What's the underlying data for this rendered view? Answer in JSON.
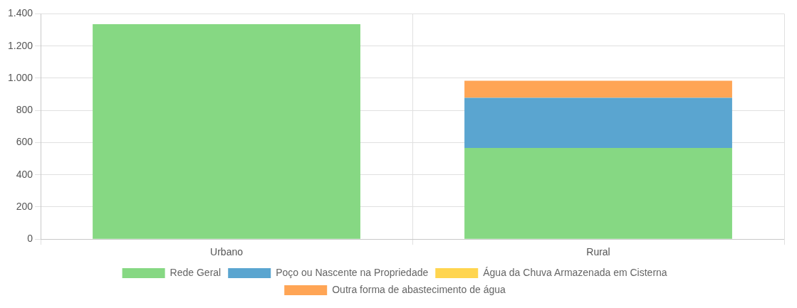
{
  "chart_data": {
    "type": "bar",
    "categories": [
      "Urbano",
      "Rural"
    ],
    "stacked": true,
    "series": [
      {
        "name": "Rede Geral",
        "color": "#86d883",
        "values": [
          1336,
          567
        ]
      },
      {
        "name": "Poço ou Nascente na Propriedade",
        "color": "#5aa5d0",
        "values": [
          0,
          311
        ]
      },
      {
        "name": "Água da Chuva Armazenada em Cisterna",
        "color": "#ffd54f",
        "values": [
          0,
          0
        ]
      },
      {
        "name": "Outra forma de abastecimento de água",
        "color": "#ffa555",
        "values": [
          0,
          106
        ]
      }
    ],
    "ylim": [
      0,
      1400
    ],
    "yticks": [
      0,
      200,
      400,
      600,
      800,
      {
        "value": 1000,
        "label": "1.000"
      },
      {
        "value": 1200,
        "label": "1.200"
      },
      {
        "value": 1400,
        "label": "1.400"
      }
    ],
    "grid": true,
    "legend": "bottom"
  }
}
